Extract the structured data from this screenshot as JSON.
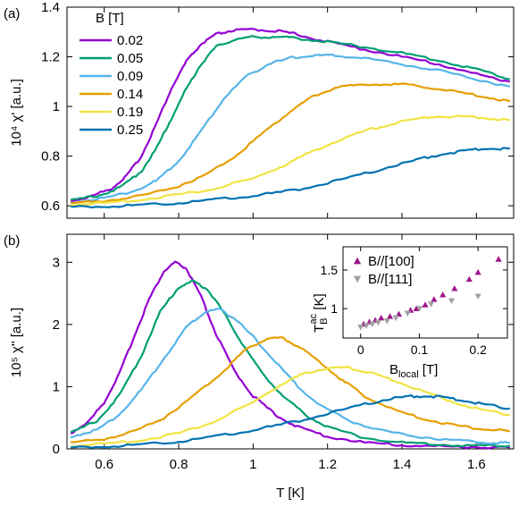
{
  "chart_data": [
    {
      "type": "line",
      "panel_label": "(a)",
      "ylabel": "10⁴ χ' [a.u.]",
      "xlim": [
        0.5,
        1.7
      ],
      "ylim": [
        0.55,
        1.4
      ],
      "yticks": [
        "0.6",
        "0.8",
        "1",
        "1.2",
        "1.4"
      ],
      "ytick_values": [
        0.6,
        0.8,
        1.0,
        1.2,
        1.4
      ],
      "xtick_values": [
        0.6,
        0.8,
        1.0,
        1.2,
        1.4,
        1.6
      ],
      "legend_title": "B [T]",
      "legend_position": "top-left",
      "series": [
        {
          "name": "0.02",
          "color": "#9400d3",
          "points": [
            [
              0.51,
              0.62
            ],
            [
              0.56,
              0.635
            ],
            [
              0.62,
              0.67
            ],
            [
              0.66,
              0.72
            ],
            [
              0.7,
              0.8
            ],
            [
              0.74,
              0.93
            ],
            [
              0.78,
              1.07
            ],
            [
              0.82,
              1.18
            ],
            [
              0.86,
              1.25
            ],
            [
              0.9,
              1.29
            ],
            [
              0.94,
              1.305
            ],
            [
              1.0,
              1.31
            ],
            [
              1.06,
              1.305
            ],
            [
              1.12,
              1.29
            ],
            [
              1.2,
              1.26
            ],
            [
              1.3,
              1.23
            ],
            [
              1.4,
              1.2
            ],
            [
              1.5,
              1.17
            ],
            [
              1.6,
              1.13
            ],
            [
              1.69,
              1.1
            ]
          ]
        },
        {
          "name": "0.05",
          "color": "#009e73",
          "points": [
            [
              0.51,
              0.62
            ],
            [
              0.58,
              0.64
            ],
            [
              0.64,
              0.67
            ],
            [
              0.7,
              0.74
            ],
            [
              0.74,
              0.83
            ],
            [
              0.78,
              0.95
            ],
            [
              0.82,
              1.07
            ],
            [
              0.86,
              1.17
            ],
            [
              0.9,
              1.24
            ],
            [
              0.95,
              1.27
            ],
            [
              1.0,
              1.28
            ],
            [
              1.06,
              1.28
            ],
            [
              1.12,
              1.275
            ],
            [
              1.2,
              1.26
            ],
            [
              1.3,
              1.24
            ],
            [
              1.4,
              1.215
            ],
            [
              1.5,
              1.185
            ],
            [
              1.6,
              1.15
            ],
            [
              1.69,
              1.11
            ]
          ]
        },
        {
          "name": "0.09",
          "color": "#56b4e9",
          "points": [
            [
              0.51,
              0.615
            ],
            [
              0.6,
              0.63
            ],
            [
              0.68,
              0.66
            ],
            [
              0.74,
              0.7
            ],
            [
              0.8,
              0.78
            ],
            [
              0.86,
              0.9
            ],
            [
              0.92,
              1.03
            ],
            [
              0.98,
              1.12
            ],
            [
              1.04,
              1.17
            ],
            [
              1.1,
              1.195
            ],
            [
              1.16,
              1.205
            ],
            [
              1.22,
              1.205
            ],
            [
              1.3,
              1.195
            ],
            [
              1.4,
              1.17
            ],
            [
              1.5,
              1.145
            ],
            [
              1.6,
              1.11
            ],
            [
              1.69,
              1.08
            ]
          ]
        },
        {
          "name": "0.14",
          "color": "#e69f00",
          "points": [
            [
              0.51,
              0.61
            ],
            [
              0.6,
              0.62
            ],
            [
              0.7,
              0.64
            ],
            [
              0.8,
              0.68
            ],
            [
              0.88,
              0.73
            ],
            [
              0.96,
              0.81
            ],
            [
              1.04,
              0.91
            ],
            [
              1.1,
              0.98
            ],
            [
              1.16,
              1.04
            ],
            [
              1.22,
              1.075
            ],
            [
              1.3,
              1.09
            ],
            [
              1.38,
              1.09
            ],
            [
              1.46,
              1.08
            ],
            [
              1.54,
              1.06
            ],
            [
              1.62,
              1.04
            ],
            [
              1.69,
              1.02
            ]
          ]
        },
        {
          "name": "0.19",
          "color": "#f0e442",
          "points": [
            [
              0.51,
              0.605
            ],
            [
              0.6,
              0.61
            ],
            [
              0.7,
              0.625
            ],
            [
              0.8,
              0.645
            ],
            [
              0.9,
              0.67
            ],
            [
              1.0,
              0.71
            ],
            [
              1.08,
              0.76
            ],
            [
              1.16,
              0.82
            ],
            [
              1.24,
              0.87
            ],
            [
              1.32,
              0.91
            ],
            [
              1.4,
              0.94
            ],
            [
              1.48,
              0.96
            ],
            [
              1.56,
              0.96
            ],
            [
              1.62,
              0.955
            ],
            [
              1.69,
              0.945
            ]
          ]
        },
        {
          "name": "0.25",
          "color": "#0072b2",
          "points": [
            [
              0.51,
              0.595
            ],
            [
              0.6,
              0.598
            ],
            [
              0.7,
              0.603
            ],
            [
              0.8,
              0.612
            ],
            [
              0.9,
              0.625
            ],
            [
              1.0,
              0.64
            ],
            [
              1.1,
              0.66
            ],
            [
              1.2,
              0.69
            ],
            [
              1.3,
              0.73
            ],
            [
              1.4,
              0.77
            ],
            [
              1.48,
              0.8
            ],
            [
              1.56,
              0.82
            ],
            [
              1.62,
              0.83
            ],
            [
              1.69,
              0.83
            ]
          ]
        }
      ]
    },
    {
      "type": "line",
      "panel_label": "(b)",
      "xlabel": "T [K]",
      "ylabel": "10⁵ χ'' [a.u.]",
      "xlim": [
        0.5,
        1.7
      ],
      "ylim": [
        0,
        3.45
      ],
      "xticks": [
        "0.6",
        "0.8",
        "1",
        "1.2",
        "1.4",
        "1.6"
      ],
      "xtick_values": [
        0.6,
        0.8,
        1.0,
        1.2,
        1.4,
        1.6
      ],
      "yticks": [
        "0",
        "1",
        "2",
        "3"
      ],
      "ytick_values": [
        0,
        1,
        2,
        3
      ],
      "series": [
        {
          "name": "0.02",
          "color": "#9400d3",
          "points": [
            [
              0.51,
              0.25
            ],
            [
              0.56,
              0.45
            ],
            [
              0.6,
              0.75
            ],
            [
              0.64,
              1.2
            ],
            [
              0.68,
              1.8
            ],
            [
              0.72,
              2.4
            ],
            [
              0.76,
              2.85
            ],
            [
              0.79,
              3.0
            ],
            [
              0.82,
              2.9
            ],
            [
              0.86,
              2.45
            ],
            [
              0.9,
              1.85
            ],
            [
              0.95,
              1.25
            ],
            [
              1.0,
              0.85
            ],
            [
              1.06,
              0.55
            ],
            [
              1.12,
              0.35
            ],
            [
              1.2,
              0.2
            ],
            [
              1.3,
              0.1
            ],
            [
              1.4,
              0.06
            ],
            [
              1.5,
              0.04
            ],
            [
              1.6,
              0.03
            ],
            [
              1.69,
              0.02
            ]
          ]
        },
        {
          "name": "0.05",
          "color": "#009e73",
          "points": [
            [
              0.51,
              0.25
            ],
            [
              0.58,
              0.45
            ],
            [
              0.64,
              0.85
            ],
            [
              0.7,
              1.5
            ],
            [
              0.75,
              2.2
            ],
            [
              0.8,
              2.6
            ],
            [
              0.84,
              2.7
            ],
            [
              0.88,
              2.55
            ],
            [
              0.92,
              2.2
            ],
            [
              0.97,
              1.7
            ],
            [
              1.02,
              1.25
            ],
            [
              1.08,
              0.85
            ],
            [
              1.14,
              0.55
            ],
            [
              1.2,
              0.35
            ],
            [
              1.3,
              0.18
            ],
            [
              1.4,
              0.1
            ],
            [
              1.5,
              0.07
            ],
            [
              1.6,
              0.05
            ],
            [
              1.69,
              0.05
            ]
          ]
        },
        {
          "name": "0.09",
          "color": "#56b4e9",
          "points": [
            [
              0.51,
              0.2
            ],
            [
              0.58,
              0.3
            ],
            [
              0.64,
              0.55
            ],
            [
              0.7,
              0.95
            ],
            [
              0.76,
              1.45
            ],
            [
              0.82,
              1.95
            ],
            [
              0.87,
              2.2
            ],
            [
              0.91,
              2.25
            ],
            [
              0.95,
              2.1
            ],
            [
              1.0,
              1.8
            ],
            [
              1.06,
              1.4
            ],
            [
              1.12,
              1.0
            ],
            [
              1.18,
              0.7
            ],
            [
              1.26,
              0.45
            ],
            [
              1.34,
              0.3
            ],
            [
              1.44,
              0.2
            ],
            [
              1.54,
              0.14
            ],
            [
              1.64,
              0.1
            ],
            [
              1.69,
              0.1
            ]
          ]
        },
        {
          "name": "0.14",
          "color": "#e69f00",
          "points": [
            [
              0.51,
              0.1
            ],
            [
              0.6,
              0.16
            ],
            [
              0.68,
              0.28
            ],
            [
              0.76,
              0.5
            ],
            [
              0.84,
              0.85
            ],
            [
              0.92,
              1.25
            ],
            [
              0.98,
              1.6
            ],
            [
              1.04,
              1.78
            ],
            [
              1.08,
              1.78
            ],
            [
              1.12,
              1.65
            ],
            [
              1.18,
              1.4
            ],
            [
              1.24,
              1.1
            ],
            [
              1.3,
              0.85
            ],
            [
              1.38,
              0.62
            ],
            [
              1.46,
              0.48
            ],
            [
              1.54,
              0.38
            ],
            [
              1.62,
              0.32
            ],
            [
              1.69,
              0.28
            ]
          ]
        },
        {
          "name": "0.19",
          "color": "#f0e442",
          "points": [
            [
              0.51,
              0.05
            ],
            [
              0.6,
              0.08
            ],
            [
              0.7,
              0.14
            ],
            [
              0.8,
              0.25
            ],
            [
              0.9,
              0.45
            ],
            [
              1.0,
              0.75
            ],
            [
              1.08,
              1.05
            ],
            [
              1.14,
              1.22
            ],
            [
              1.2,
              1.3
            ],
            [
              1.26,
              1.3
            ],
            [
              1.32,
              1.22
            ],
            [
              1.38,
              1.1
            ],
            [
              1.46,
              0.92
            ],
            [
              1.54,
              0.75
            ],
            [
              1.62,
              0.62
            ],
            [
              1.69,
              0.55
            ]
          ]
        },
        {
          "name": "0.25",
          "color": "#0072b2",
          "points": [
            [
              0.51,
              0.02
            ],
            [
              0.6,
              0.04
            ],
            [
              0.7,
              0.07
            ],
            [
              0.8,
              0.12
            ],
            [
              0.9,
              0.2
            ],
            [
              1.0,
              0.3
            ],
            [
              1.1,
              0.42
            ],
            [
              1.2,
              0.56
            ],
            [
              1.3,
              0.72
            ],
            [
              1.38,
              0.82
            ],
            [
              1.44,
              0.85
            ],
            [
              1.5,
              0.84
            ],
            [
              1.56,
              0.78
            ],
            [
              1.62,
              0.72
            ],
            [
              1.69,
              0.65
            ]
          ]
        }
      ]
    },
    {
      "type": "scatter",
      "role": "inset",
      "xlabel_main": "B",
      "xlabel_sub": "local",
      "xlabel_unit": " [T]",
      "ylabel_main": "T",
      "ylabel_sub": "B",
      "ylabel_sup": "ac",
      "ylabel_unit": " [K]",
      "xlim": [
        -0.03,
        0.25
      ],
      "ylim": [
        0.62,
        1.8
      ],
      "xticks": [
        "0",
        "0.1",
        "0.2"
      ],
      "xtick_values": [
        0,
        0.1,
        0.2
      ],
      "yticks": [
        "1",
        "1.5"
      ],
      "ytick_values": [
        1.0,
        1.5
      ],
      "legend_position": "top-left",
      "series": [
        {
          "name": "B//[100]",
          "marker": "triangle-up",
          "color": "#a0148c",
          "points": [
            [
              0.005,
              0.8
            ],
            [
              0.015,
              0.83
            ],
            [
              0.025,
              0.85
            ],
            [
              0.035,
              0.88
            ],
            [
              0.05,
              0.9
            ],
            [
              0.065,
              0.93
            ],
            [
              0.085,
              0.98
            ],
            [
              0.095,
              1.0
            ],
            [
              0.11,
              1.05
            ],
            [
              0.125,
              1.12
            ],
            [
              0.14,
              1.18
            ],
            [
              0.16,
              1.26
            ],
            [
              0.185,
              1.38
            ],
            [
              0.2,
              1.47
            ],
            [
              0.235,
              1.64
            ]
          ]
        },
        {
          "name": "B//[111]",
          "marker": "triangle-down",
          "color": "#a0a0a0",
          "points": [
            [
              0.0,
              0.76
            ],
            [
              0.01,
              0.78
            ],
            [
              0.02,
              0.8
            ],
            [
              0.03,
              0.82
            ],
            [
              0.045,
              0.84
            ],
            [
              0.06,
              0.88
            ],
            [
              0.08,
              0.94
            ],
            [
              0.1,
              1.0
            ],
            [
              0.12,
              1.06
            ],
            [
              0.155,
              1.1
            ],
            [
              0.2,
              1.16
            ]
          ]
        }
      ]
    }
  ]
}
